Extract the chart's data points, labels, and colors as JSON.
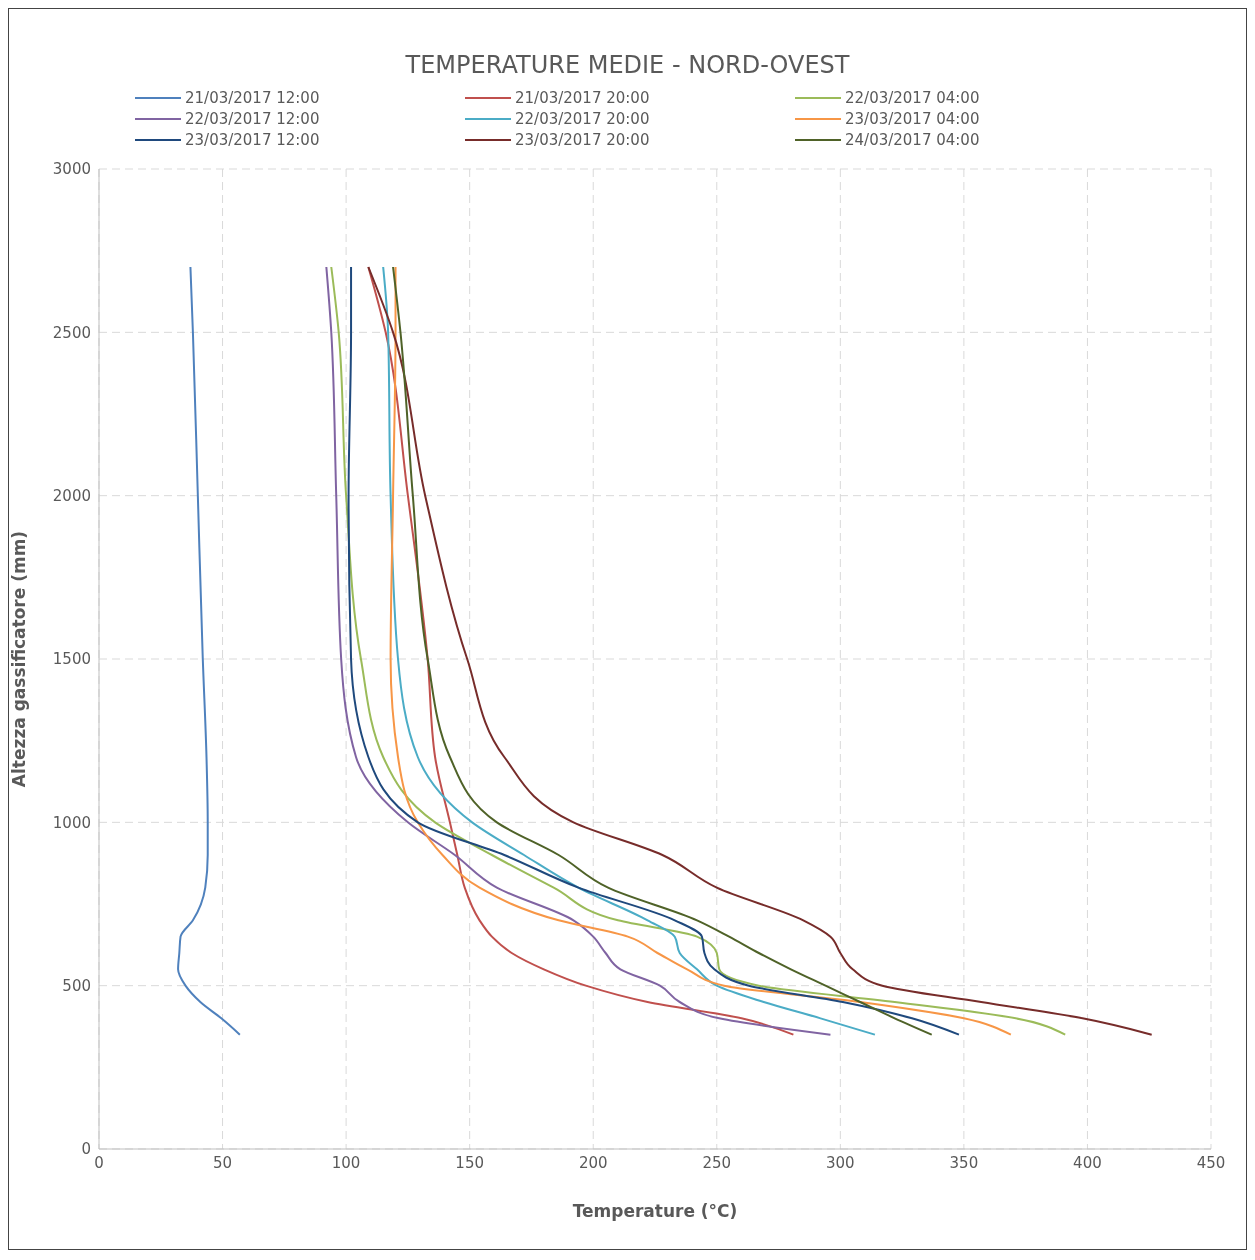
{
  "chart_data": {
    "type": "line",
    "title": "TEMPERATURE  MEDIE - NORD-OVEST",
    "xlabel": "Temperature (°C)",
    "ylabel": "Altezza gassificatore (mm)",
    "xlim": [
      0,
      450
    ],
    "xticks": [
      0,
      50,
      100,
      150,
      200,
      250,
      300,
      350,
      400,
      450
    ],
    "ylim": [
      0,
      3000
    ],
    "yticks": [
      0,
      500,
      1000,
      1500,
      2000,
      2500,
      3000
    ],
    "grid": true,
    "legend": "top",
    "marker": "none",
    "line_style": "solid",
    "series": [
      {
        "name": "21/03/2017 12:00",
        "color": "#4f81bd",
        "x": [
          57,
          49.5,
          41,
          35,
          32,
          32.5,
          33,
          38,
          43,
          44,
          44,
          43.5,
          42,
          40,
          38,
          37
        ],
        "values": [
          350,
          400,
          450,
          500,
          550,
          600,
          650,
          700,
          800,
          900,
          1000,
          1200,
          1500,
          2000,
          2500,
          2700
        ]
      },
      {
        "name": "21/03/2017 20:00",
        "color": "#c0504d",
        "x": [
          281,
          260,
          222,
          197,
          180,
          167,
          159,
          154,
          148,
          145,
          142,
          136,
          133,
          125,
          116,
          109
        ],
        "values": [
          350,
          400,
          450,
          500,
          550,
          600,
          650,
          700,
          800,
          900,
          1000,
          1200,
          1500,
          2000,
          2500,
          2700
        ]
      },
      {
        "name": "22/03/2017 04:00",
        "color": "#9bbb59",
        "x": [
          391,
          371,
          322,
          267,
          251,
          250,
          242,
          210,
          184,
          159,
          136,
          115,
          106,
          100,
          97,
          94
        ],
        "values": [
          350,
          400,
          450,
          500,
          550,
          600,
          650,
          700,
          800,
          900,
          1000,
          1200,
          1500,
          2000,
          2500,
          2700
        ]
      },
      {
        "name": "22/03/2017 12:00",
        "color": "#8064a2",
        "x": [
          296,
          251,
          235,
          227,
          211,
          205,
          200,
          192,
          161,
          144,
          125,
          104,
          98,
          96,
          94,
          92
        ],
        "values": [
          350,
          400,
          450,
          500,
          550,
          600,
          650,
          700,
          800,
          900,
          1000,
          1200,
          1500,
          2000,
          2500,
          2700
        ]
      },
      {
        "name": "22/03/2017 20:00",
        "color": "#4bacc6",
        "x": [
          314,
          292,
          269,
          250,
          242,
          235,
          233,
          222,
          194,
          172,
          151,
          129,
          121,
          118,
          117,
          115
        ],
        "values": [
          350,
          400,
          450,
          500,
          550,
          600,
          650,
          700,
          800,
          900,
          1000,
          1200,
          1500,
          2000,
          2500,
          2700
        ]
      },
      {
        "name": "23/03/2017 04:00",
        "color": "#f79646",
        "x": [
          369,
          350,
          308,
          253,
          238,
          226,
          214,
          186,
          154,
          139,
          129,
          121,
          118,
          119,
          120,
          120
        ],
        "values": [
          350,
          400,
          450,
          500,
          550,
          600,
          650,
          700,
          800,
          900,
          1000,
          1200,
          1500,
          2000,
          2500,
          2700
        ]
      },
      {
        "name": "23/03/2017 12:00",
        "color": "#1f497d",
        "x": [
          348,
          329,
          301,
          263,
          249,
          245,
          244,
          233,
          194,
          164,
          129,
          109,
          102,
          101,
          102,
          102
        ],
        "values": [
          350,
          400,
          450,
          500,
          550,
          600,
          650,
          700,
          800,
          900,
          1000,
          1200,
          1500,
          2000,
          2500,
          2700
        ]
      },
      {
        "name": "23/03/2017 20:00",
        "color": "#772c2a",
        "x": [
          426,
          398,
          357,
          317,
          305,
          300,
          296,
          285,
          250,
          228,
          192,
          164,
          149,
          132,
          119,
          109
        ],
        "values": [
          350,
          400,
          450,
          500,
          550,
          600,
          650,
          700,
          800,
          900,
          1000,
          1200,
          1500,
          2000,
          2500,
          2700
        ]
      },
      {
        "name": "24/03/2017 04:00",
        "color": "#4f6228",
        "x": [
          337,
          322,
          308,
          294,
          280,
          267,
          255,
          242,
          206,
          186,
          161,
          142,
          133,
          127,
          122,
          119
        ],
        "values": [
          350,
          400,
          450,
          500,
          550,
          600,
          650,
          700,
          800,
          900,
          1000,
          1200,
          1500,
          2000,
          2500,
          2700
        ]
      }
    ]
  }
}
